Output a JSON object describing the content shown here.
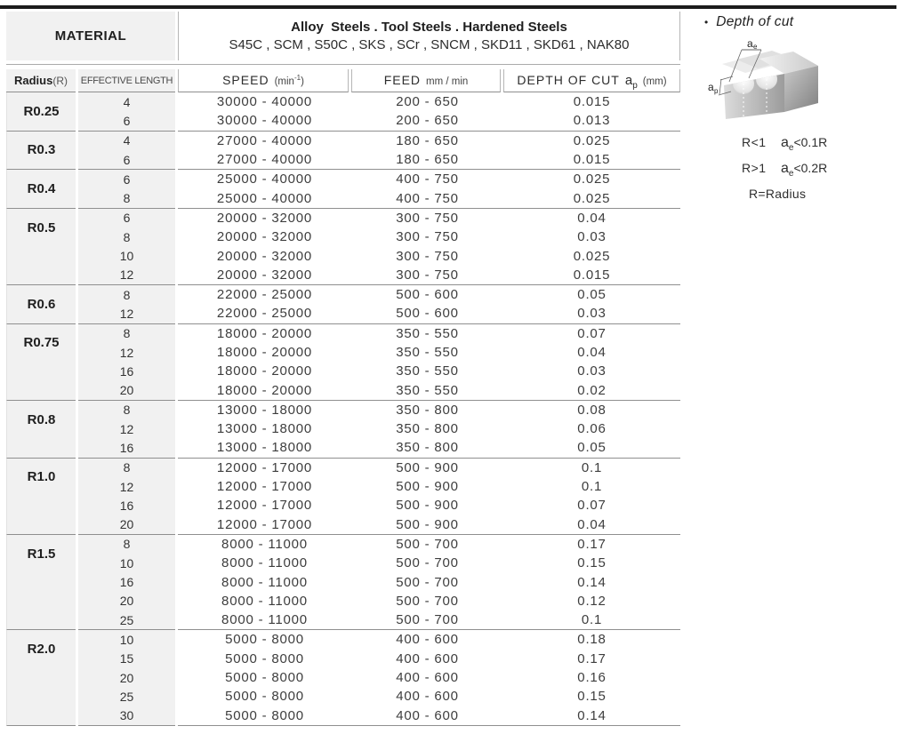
{
  "material": {
    "label": "MATERIAL",
    "line1": "Alloy  Steels . Tool Steels . Hardened Steels",
    "line2": "S45C , SCM , S50C , SKS , SCr , SNCM , SKD11 , SKD61 , NAK80"
  },
  "columns": {
    "radius_bold": "Radius",
    "radius_paren": "(R)",
    "effective_length": "EFFECTIVE LENGTH",
    "speed_main": "SPEED",
    "speed_unit_open": "(min",
    "speed_unit_sup": "-1",
    "speed_unit_close": ")",
    "feed_main": "FEED",
    "feed_unit": "mm / min",
    "depth_main": "DEPTH OF CUT",
    "depth_var": "a",
    "depth_sub": "p",
    "depth_unit": "(mm)"
  },
  "groups": [
    {
      "radius": "R0.25",
      "rows": [
        {
          "len": "4",
          "speed": "30000 - 40000",
          "feed": "200 - 650",
          "depth": "0.015"
        },
        {
          "len": "6",
          "speed": "30000 - 40000",
          "feed": "200 - 650",
          "depth": "0.013"
        }
      ]
    },
    {
      "radius": "R0.3",
      "rows": [
        {
          "len": "4",
          "speed": "27000 - 40000",
          "feed": "180 - 650",
          "depth": "0.025"
        },
        {
          "len": "6",
          "speed": "27000 - 40000",
          "feed": "180 - 650",
          "depth": "0.015"
        }
      ]
    },
    {
      "radius": "R0.4",
      "rows": [
        {
          "len": "6",
          "speed": "25000 - 40000",
          "feed": "400 - 750",
          "depth": "0.025"
        },
        {
          "len": "8",
          "speed": "25000 - 40000",
          "feed": "400 - 750",
          "depth": "0.025"
        }
      ]
    },
    {
      "radius": "R0.5",
      "rows": [
        {
          "len": "6",
          "speed": "20000 - 32000",
          "feed": "300 - 750",
          "depth": "0.04"
        },
        {
          "len": "8",
          "speed": "20000 - 32000",
          "feed": "300 - 750",
          "depth": "0.03"
        },
        {
          "len": "10",
          "speed": "20000 - 32000",
          "feed": "300 - 750",
          "depth": "0.025"
        },
        {
          "len": "12",
          "speed": "20000 - 32000",
          "feed": "300 - 750",
          "depth": "0.015"
        }
      ]
    },
    {
      "radius": "R0.6",
      "rows": [
        {
          "len": "8",
          "speed": "22000 - 25000",
          "feed": "500 - 600",
          "depth": "0.05"
        },
        {
          "len": "12",
          "speed": "22000 - 25000",
          "feed": "500 - 600",
          "depth": "0.03"
        }
      ]
    },
    {
      "radius": "R0.75",
      "rows": [
        {
          "len": "8",
          "speed": "18000 - 20000",
          "feed": "350 - 550",
          "depth": "0.07"
        },
        {
          "len": "12",
          "speed": "18000 - 20000",
          "feed": "350 - 550",
          "depth": "0.04"
        },
        {
          "len": "16",
          "speed": "18000 - 20000",
          "feed": "350 - 550",
          "depth": "0.03"
        },
        {
          "len": "20",
          "speed": "18000 - 20000",
          "feed": "350 - 550",
          "depth": "0.02"
        }
      ]
    },
    {
      "radius": "R0.8",
      "rows": [
        {
          "len": "8",
          "speed": "13000 - 18000",
          "feed": "350 - 800",
          "depth": "0.08"
        },
        {
          "len": "12",
          "speed": "13000 - 18000",
          "feed": "350 - 800",
          "depth": "0.06"
        },
        {
          "len": "16",
          "speed": "13000 - 18000",
          "feed": "350 - 800",
          "depth": "0.05"
        }
      ]
    },
    {
      "radius": "R1.0",
      "rows": [
        {
          "len": "8",
          "speed": "12000 - 17000",
          "feed": "500 - 900",
          "depth": "0.1"
        },
        {
          "len": "12",
          "speed": "12000 - 17000",
          "feed": "500 - 900",
          "depth": "0.1"
        },
        {
          "len": "16",
          "speed": "12000 - 17000",
          "feed": "500 - 900",
          "depth": "0.07"
        },
        {
          "len": "20",
          "speed": "12000 - 17000",
          "feed": "500 - 900",
          "depth": "0.04"
        }
      ]
    },
    {
      "radius": "R1.5",
      "rows": [
        {
          "len": "8",
          "speed": "8000 - 11000",
          "feed": "500 - 700",
          "depth": "0.17"
        },
        {
          "len": "10",
          "speed": "8000 - 11000",
          "feed": "500 - 700",
          "depth": "0.15"
        },
        {
          "len": "16",
          "speed": "8000 - 11000",
          "feed": "500 - 700",
          "depth": "0.14"
        },
        {
          "len": "20",
          "speed": "8000 - 11000",
          "feed": "500 - 700",
          "depth": "0.12"
        },
        {
          "len": "25",
          "speed": "8000 - 11000",
          "feed": "500 - 700",
          "depth": "0.1"
        }
      ]
    },
    {
      "radius": "R2.0",
      "rows": [
        {
          "len": "10",
          "speed": "5000 - 8000",
          "feed": "400 - 600",
          "depth": "0.18"
        },
        {
          "len": "15",
          "speed": "5000 - 8000",
          "feed": "400 - 600",
          "depth": "0.17"
        },
        {
          "len": "20",
          "speed": "5000 - 8000",
          "feed": "400 - 600",
          "depth": "0.16"
        },
        {
          "len": "25",
          "speed": "5000 - 8000",
          "feed": "400 - 600",
          "depth": "0.15"
        },
        {
          "len": "30",
          "speed": "5000 - 8000",
          "feed": "400 - 600",
          "depth": "0.14"
        }
      ]
    }
  ],
  "side": {
    "bullet": "•",
    "title": "Depth of cut",
    "diagram": {
      "ae_var": "a",
      "ae_sub": "e",
      "ap_var": "a",
      "ap_sub": "p"
    },
    "notes": [
      {
        "cond": "R<1",
        "var": "a",
        "sub": "e",
        "rule": "<0.1R"
      },
      {
        "cond": "R>1",
        "var": "a",
        "sub": "e",
        "rule": "<0.2R"
      }
    ],
    "footer": "R=Radius"
  },
  "colors": {
    "top_bar": "#1b1b1b",
    "cell_bg": "#f1f1f1",
    "separator": "#8f8f8f",
    "light_border": "#b5b5b5",
    "text": "#3a3a3a"
  }
}
